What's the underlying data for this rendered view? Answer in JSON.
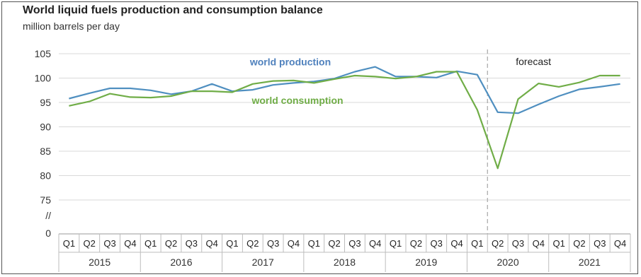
{
  "chart_data": {
    "type": "line",
    "title": "World liquid fuels production and consumption balance",
    "subtitle": "million barrels per day",
    "y_ticks": [
      "105",
      "100",
      "95",
      "90",
      "85",
      "80",
      "75",
      "//",
      "0"
    ],
    "ylim": [
      75,
      105
    ],
    "axis_break": true,
    "grid": true,
    "quarters": [
      "Q1",
      "Q2",
      "Q3",
      "Q4",
      "Q1",
      "Q2",
      "Q3",
      "Q4",
      "Q1",
      "Q2",
      "Q3",
      "Q4",
      "Q1",
      "Q2",
      "Q3",
      "Q4",
      "Q1",
      "Q2",
      "Q3",
      "Q4",
      "Q1",
      "Q2",
      "Q3",
      "Q4",
      "Q1",
      "Q2",
      "Q3",
      "Q4"
    ],
    "years": [
      "2015",
      "2016",
      "2017",
      "2018",
      "2019",
      "2020",
      "2021"
    ],
    "forecast_label": "forecast",
    "forecast_start_index": 21,
    "series": [
      {
        "name": "world production",
        "color": "#4f8fc0",
        "label_color": "#4f81bd",
        "values": [
          95.8,
          96.9,
          97.9,
          97.9,
          97.5,
          96.7,
          97.3,
          98.8,
          97.3,
          97.6,
          98.6,
          99.0,
          99.3,
          99.9,
          101.3,
          102.3,
          100.3,
          100.3,
          100.1,
          101.4,
          100.7,
          93.0,
          92.8,
          94.6,
          96.3,
          97.7,
          98.2,
          98.8
        ]
      },
      {
        "name": "world consumption",
        "color": "#70ad47",
        "label_color": "#70ad47",
        "values": [
          94.3,
          95.2,
          96.8,
          96.1,
          96.0,
          96.3,
          97.3,
          97.3,
          97.1,
          98.8,
          99.4,
          99.5,
          99.0,
          99.8,
          100.5,
          100.3,
          99.9,
          100.3,
          101.3,
          101.3,
          93.5,
          81.5,
          95.7,
          98.9,
          98.2,
          99.1,
          100.5,
          100.5
        ]
      }
    ]
  }
}
